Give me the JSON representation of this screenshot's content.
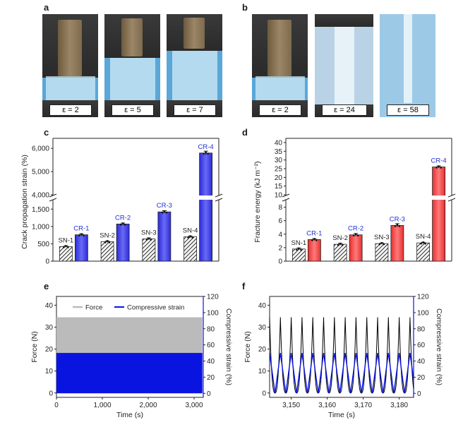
{
  "panels": {
    "a": "a",
    "b": "b",
    "c": "c",
    "d": "d",
    "e": "e",
    "f": "f"
  },
  "photos_a": [
    "ε = 2",
    "ε = 5",
    "ε = 7"
  ],
  "photos_b": [
    "ε = 2",
    "ε = 24",
    "ε = 58"
  ],
  "colors": {
    "sn_hatch": "#333333",
    "cr_blue": "#2b2bd9",
    "cr_red": "#e62e2e",
    "force_gray": "#bbbbbb",
    "strain_blue": "#0a14e0",
    "label_blue": "#1e2fd6"
  },
  "chart_data": [
    {
      "id": "c",
      "type": "bar",
      "ylabel": "Crack propagation strain (%)",
      "broken_axis": true,
      "ylim_lower": [
        0,
        1750
      ],
      "ylim_upper": [
        4000,
        6250
      ],
      "yticks_lower": [
        "0",
        "500",
        "1,000",
        "1,500"
      ],
      "yticks_upper": [
        "4,000",
        "5,000",
        "6,000"
      ],
      "categories": [
        "SN-1",
        "CR-1",
        "SN-2",
        "CR-2",
        "SN-3",
        "CR-3",
        "SN-4",
        "CR-4"
      ],
      "values": [
        420,
        760,
        560,
        1070,
        640,
        1420,
        700,
        5800
      ],
      "errors": [
        25,
        30,
        25,
        30,
        30,
        35,
        25,
        80
      ]
    },
    {
      "id": "d",
      "type": "bar",
      "ylabel": "Fracture energy (kJ m⁻²)",
      "broken_axis": true,
      "ylim_lower": [
        0,
        9
      ],
      "ylim_upper": [
        10,
        40
      ],
      "yticks_lower": [
        "0",
        "2",
        "4",
        "6",
        "8"
      ],
      "yticks_upper": [
        "10",
        "15",
        "20",
        "25",
        "30",
        "35",
        "40"
      ],
      "categories": [
        "SN-1",
        "CR-1",
        "SN-2",
        "CR-2",
        "SN-3",
        "CR-3",
        "SN-4",
        "CR-4"
      ],
      "values": [
        1.8,
        3.2,
        2.5,
        3.9,
        2.6,
        5.3,
        2.7,
        26.0
      ],
      "errors": [
        0.15,
        0.15,
        0.15,
        0.2,
        0.1,
        0.25,
        0.1,
        0.6
      ]
    },
    {
      "id": "e",
      "type": "area",
      "xlabel": "Time (s)",
      "ylabel": "Force (N)",
      "y2label": "Compressive strain (%)",
      "xlim": [
        0,
        3200
      ],
      "ylim": [
        -2,
        44
      ],
      "y2lim": [
        -5,
        120
      ],
      "xticks": [
        "0",
        "1,000",
        "2,000",
        "3,000"
      ],
      "yticks": [
        "0",
        "10",
        "20",
        "30",
        "40"
      ],
      "y2ticks": [
        "0",
        "20",
        "40",
        "60",
        "80",
        "100",
        "120"
      ],
      "series": [
        {
          "name": "Force",
          "x_range": [
            0,
            3180
          ],
          "y_range": [
            0,
            34.5
          ]
        },
        {
          "name": "Compressive strain",
          "x_range": [
            0,
            3180
          ],
          "y_range": [
            0,
            50
          ]
        }
      ]
    },
    {
      "id": "f",
      "type": "line",
      "xlabel": "Time (s)",
      "ylabel": "Force (N)",
      "y2label": "Compressive strain (%)",
      "xlim": [
        3144,
        3184
      ],
      "ylim": [
        -2,
        44
      ],
      "y2lim": [
        -5,
        120
      ],
      "xticks": [
        "3,150",
        "3,160",
        "3,170",
        "3,180"
      ],
      "yticks": [
        "0",
        "10",
        "20",
        "30",
        "40"
      ],
      "y2ticks": [
        "0",
        "20",
        "40",
        "60",
        "80",
        "100",
        "120"
      ],
      "cycle_period_s": 3.0,
      "first_peak_s": 3147.0,
      "series": [
        {
          "name": "Force",
          "min": 0,
          "max": 34.5
        },
        {
          "name": "Compressive strain",
          "min": 0,
          "max": 50
        }
      ]
    }
  ]
}
